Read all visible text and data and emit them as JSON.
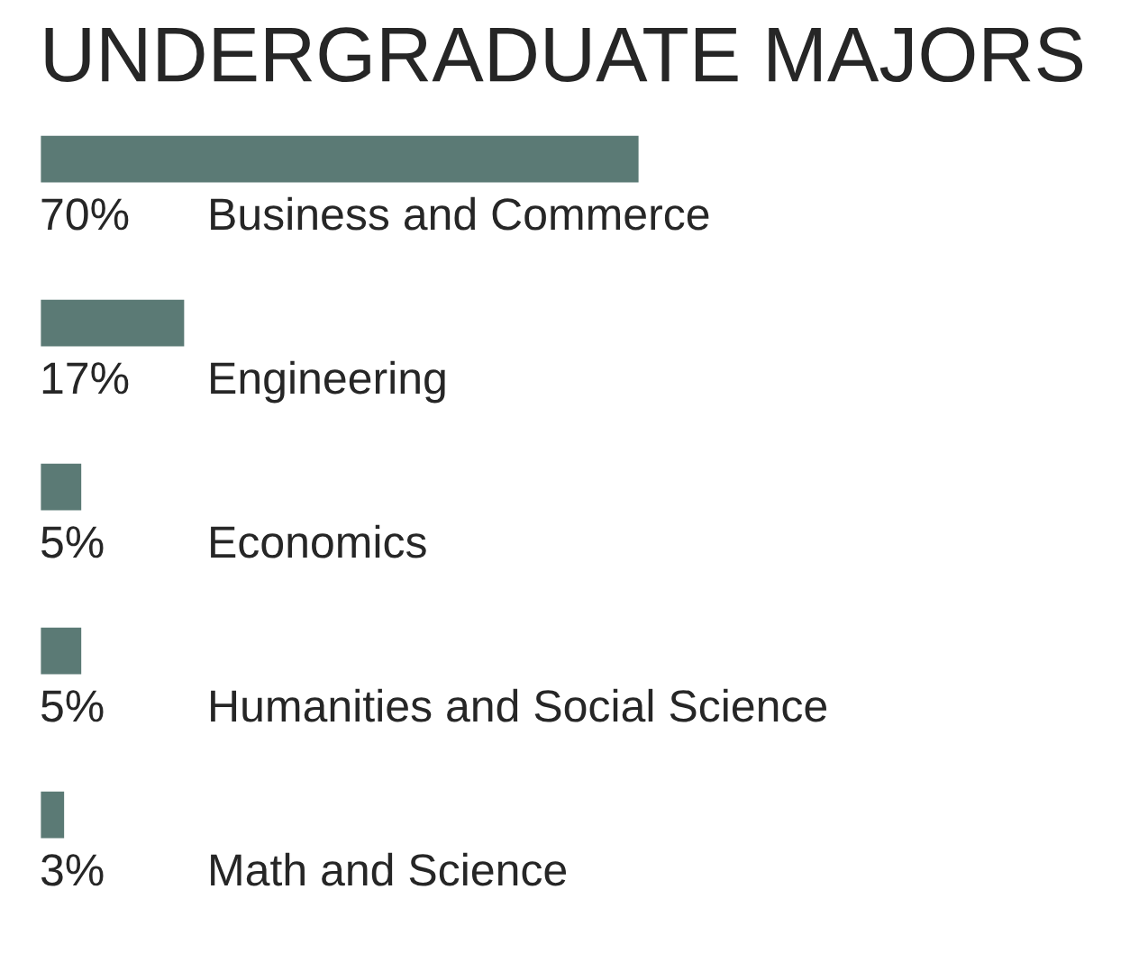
{
  "chart_data": {
    "type": "bar",
    "orientation": "horizontal",
    "title": "UNDERGRADUATE MAJORS",
    "categories": [
      "Business and Commerce",
      "Engineering",
      "Economics",
      "Humanities and Social Science",
      "Math and Science"
    ],
    "values": [
      70,
      17,
      5,
      5,
      3
    ],
    "value_labels": [
      "70%",
      "17%",
      "5%",
      "5%",
      "3%"
    ],
    "color": "#5b7a75"
  }
}
